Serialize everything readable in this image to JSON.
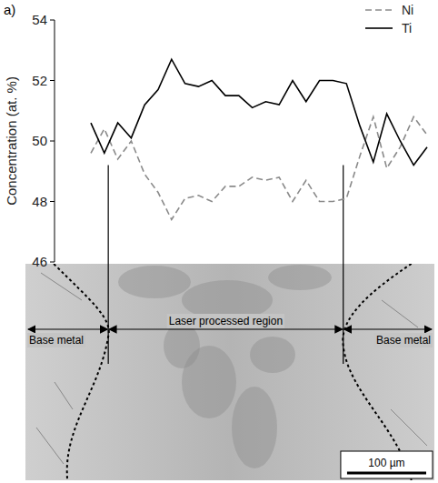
{
  "chart_data": {
    "type": "line",
    "panel": "a)",
    "y_label": "Concentration (at. %)",
    "x": [
      0,
      17,
      34,
      51,
      68,
      85,
      102,
      119,
      136,
      153,
      170,
      187,
      204,
      221,
      238,
      255,
      272,
      289,
      306,
      323,
      340,
      357,
      374,
      391,
      408,
      425
    ],
    "series": [
      {
        "name": "Ni",
        "color": "#8a8a8a",
        "line_style": "dashed",
        "values": [
          49.6,
          50.4,
          49.4,
          50.0,
          48.9,
          48.3,
          47.4,
          48.1,
          48.2,
          48.0,
          48.5,
          48.5,
          48.8,
          48.7,
          48.8,
          48.0,
          48.7,
          48.0,
          48.0,
          48.1,
          49.5,
          50.8,
          49.1,
          49.8,
          50.8,
          50.2
        ]
      },
      {
        "name": "Ti",
        "color": "#000000",
        "line_style": "solid",
        "values": [
          50.6,
          49.6,
          50.6,
          50.1,
          51.2,
          51.7,
          52.7,
          51.9,
          51.8,
          52.0,
          51.5,
          51.5,
          51.1,
          51.3,
          51.2,
          52.0,
          51.3,
          52.0,
          52.0,
          51.9,
          50.5,
          49.3,
          50.9,
          50.0,
          49.2,
          49.8
        ]
      }
    ],
    "xlim": [
      0,
      425
    ],
    "ylim": [
      46,
      54
    ],
    "yticks": [
      46,
      48,
      50,
      52,
      54
    ],
    "tick_labels": "y",
    "legend": "top-right",
    "annotations": [
      {
        "text": "Laser processed region",
        "x": [
          22,
          319
        ]
      },
      {
        "text": "Base metal",
        "x": [
          -80,
          22
        ]
      },
      {
        "text": "Base metal",
        "x": [
          319,
          425
        ]
      }
    ],
    "scale_bar": {
      "label": "100 µm",
      "value": 100
    }
  }
}
